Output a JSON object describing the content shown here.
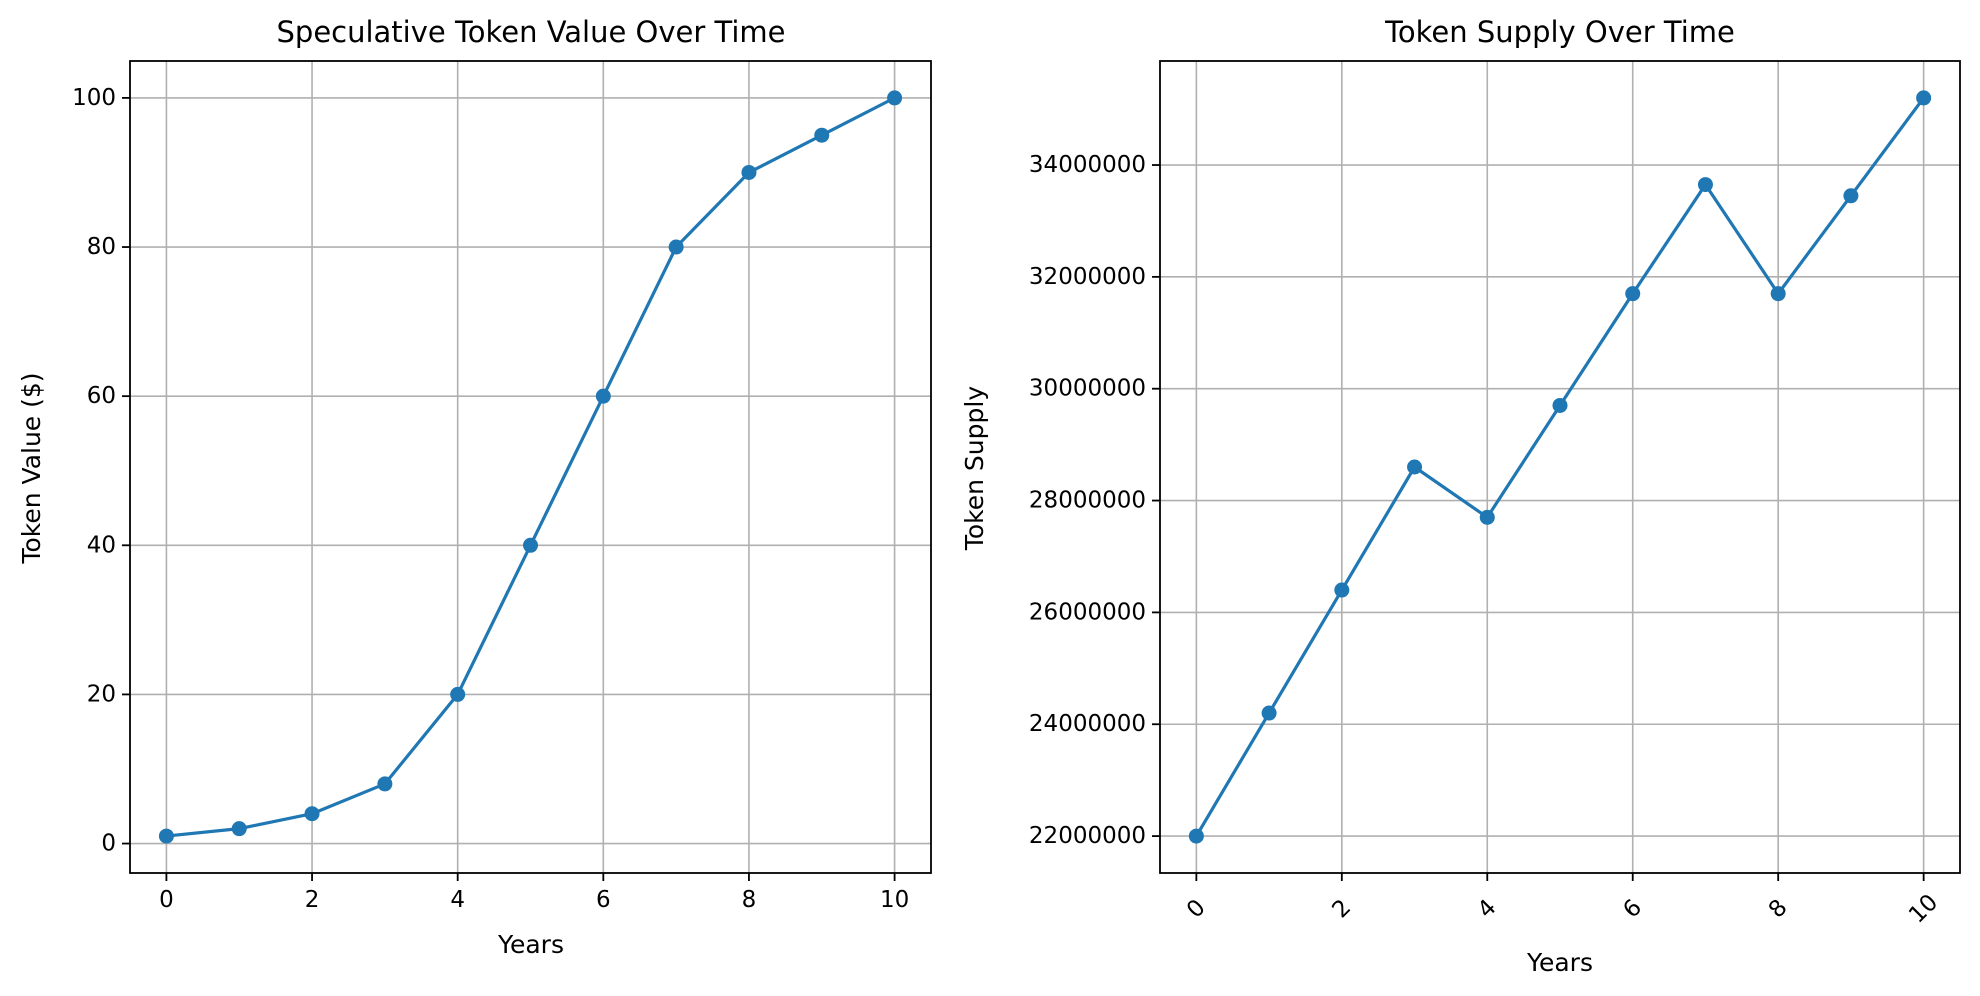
{
  "chart_data": [
    {
      "type": "line",
      "title": "Speculative Token Value Over Time",
      "xlabel": "Years",
      "ylabel": "Token Value ($)",
      "x": [
        0,
        1,
        2,
        3,
        4,
        5,
        6,
        7,
        8,
        9,
        10
      ],
      "series": [
        {
          "values": [
            1,
            2,
            4,
            8,
            20,
            40,
            60,
            80,
            90,
            95,
            100
          ],
          "color": "#1f77b4",
          "marker": "circle"
        }
      ],
      "xlim": [
        -0.5,
        10.5
      ],
      "ylim": [
        -3.95,
        104.95
      ],
      "xticks": [
        0,
        2,
        4,
        6,
        8,
        10
      ],
      "xtick_labels": [
        "0",
        "2",
        "4",
        "6",
        "8",
        "10"
      ],
      "yticks": [
        0,
        20,
        40,
        60,
        80,
        100
      ],
      "ytick_labels": [
        "0",
        "20",
        "40",
        "60",
        "80",
        "100"
      ],
      "xtick_rotation": 0,
      "grid": true
    },
    {
      "type": "line",
      "title": "Token Supply Over Time",
      "xlabel": "Years",
      "ylabel": "Token Supply",
      "x": [
        0,
        1,
        2,
        3,
        4,
        5,
        6,
        7,
        8,
        9,
        10
      ],
      "series": [
        {
          "values": [
            22000000,
            24200000,
            26400000,
            28600000,
            27700000,
            29700000,
            31700000,
            33650000,
            31700000,
            33450000,
            35200000
          ],
          "color": "#1f77b4",
          "marker": "circle"
        }
      ],
      "xlim": [
        -0.5,
        10.5
      ],
      "ylim": [
        21340000,
        35860000
      ],
      "xticks": [
        0,
        2,
        4,
        6,
        8,
        10
      ],
      "xtick_labels": [
        "0",
        "2",
        "4",
        "6",
        "8",
        "10"
      ],
      "yticks": [
        22000000,
        24000000,
        26000000,
        28000000,
        30000000,
        32000000,
        34000000
      ],
      "ytick_labels": [
        "22000000",
        "24000000",
        "26000000",
        "28000000",
        "30000000",
        "32000000",
        "34000000"
      ],
      "xtick_rotation": -45,
      "grid": true
    }
  ]
}
